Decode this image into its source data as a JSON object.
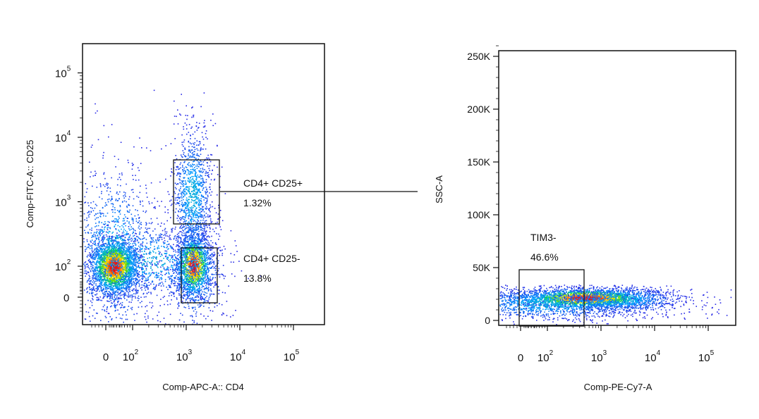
{
  "chart_data": [
    {
      "type": "scatter",
      "subtype": "flow-cytometry-pseudocolor-density",
      "xlabel": "Comp-APC-A:: CD4",
      "ylabel": "Comp-FITC-A:: CD25",
      "x_scale": "biexponential",
      "y_scale": "biexponential",
      "x_tick_labels": [
        {
          "value": 0,
          "base": "0",
          "exp": ""
        },
        {
          "value": 100,
          "base": "10",
          "exp": "2"
        },
        {
          "value": 1000,
          "base": "10",
          "exp": "3"
        },
        {
          "value": 10000,
          "base": "10",
          "exp": "4"
        },
        {
          "value": 100000,
          "base": "10",
          "exp": "5"
        }
      ],
      "y_tick_labels": [
        {
          "value": 0,
          "base": "0",
          "exp": ""
        },
        {
          "value": 100,
          "base": "10",
          "exp": "2"
        },
        {
          "value": 1000,
          "base": "10",
          "exp": "3"
        },
        {
          "value": 10000,
          "base": "10",
          "exp": "4"
        },
        {
          "value": 100000,
          "base": "10",
          "exp": "5"
        }
      ],
      "populations": [
        {
          "x_center": 20,
          "y_center": 100,
          "relative_density": 1.0
        },
        {
          "x_center": 1200,
          "y_center": 110,
          "relative_density": 0.35
        },
        {
          "x_center": 1200,
          "y_center": 1000,
          "relative_density": 0.12
        }
      ],
      "gates": [
        {
          "label": "CD4+ CD25+",
          "percent": "1.32%",
          "x_range": [
            550,
            3500
          ],
          "y_range": [
            450,
            4000
          ]
        },
        {
          "label": "CD4+ CD25-",
          "percent": "13.8%",
          "x_range": [
            700,
            3200
          ],
          "y_range": [
            -60,
            190
          ]
        }
      ]
    },
    {
      "type": "scatter",
      "subtype": "flow-cytometry-pseudocolor-density",
      "xlabel": "Comp-PE-Cy7-A",
      "ylabel": "SSC-A",
      "x_scale": "biexponential",
      "y_scale": "linear",
      "ylim": [
        0,
        262144
      ],
      "x_tick_labels": [
        {
          "value": 0,
          "base": "0",
          "exp": ""
        },
        {
          "value": 100,
          "base": "10",
          "exp": "2"
        },
        {
          "value": 1000,
          "base": "10",
          "exp": "3"
        },
        {
          "value": 10000,
          "base": "10",
          "exp": "4"
        },
        {
          "value": 100000,
          "base": "10",
          "exp": "5"
        }
      ],
      "y_tick_labels": [
        "0",
        "50K",
        "100K",
        "150K",
        "200K",
        "250K"
      ],
      "y_tick_values": [
        0,
        50000,
        100000,
        150000,
        200000,
        250000
      ],
      "populations": [
        {
          "x_center": 300,
          "y_center": 22000,
          "relative_density": 1.0
        }
      ],
      "gates": [
        {
          "label": "TIM3-",
          "percent": "46.6%",
          "x_range": [
            -5,
            400
          ],
          "y_range": [
            0,
            53000
          ]
        }
      ]
    }
  ]
}
